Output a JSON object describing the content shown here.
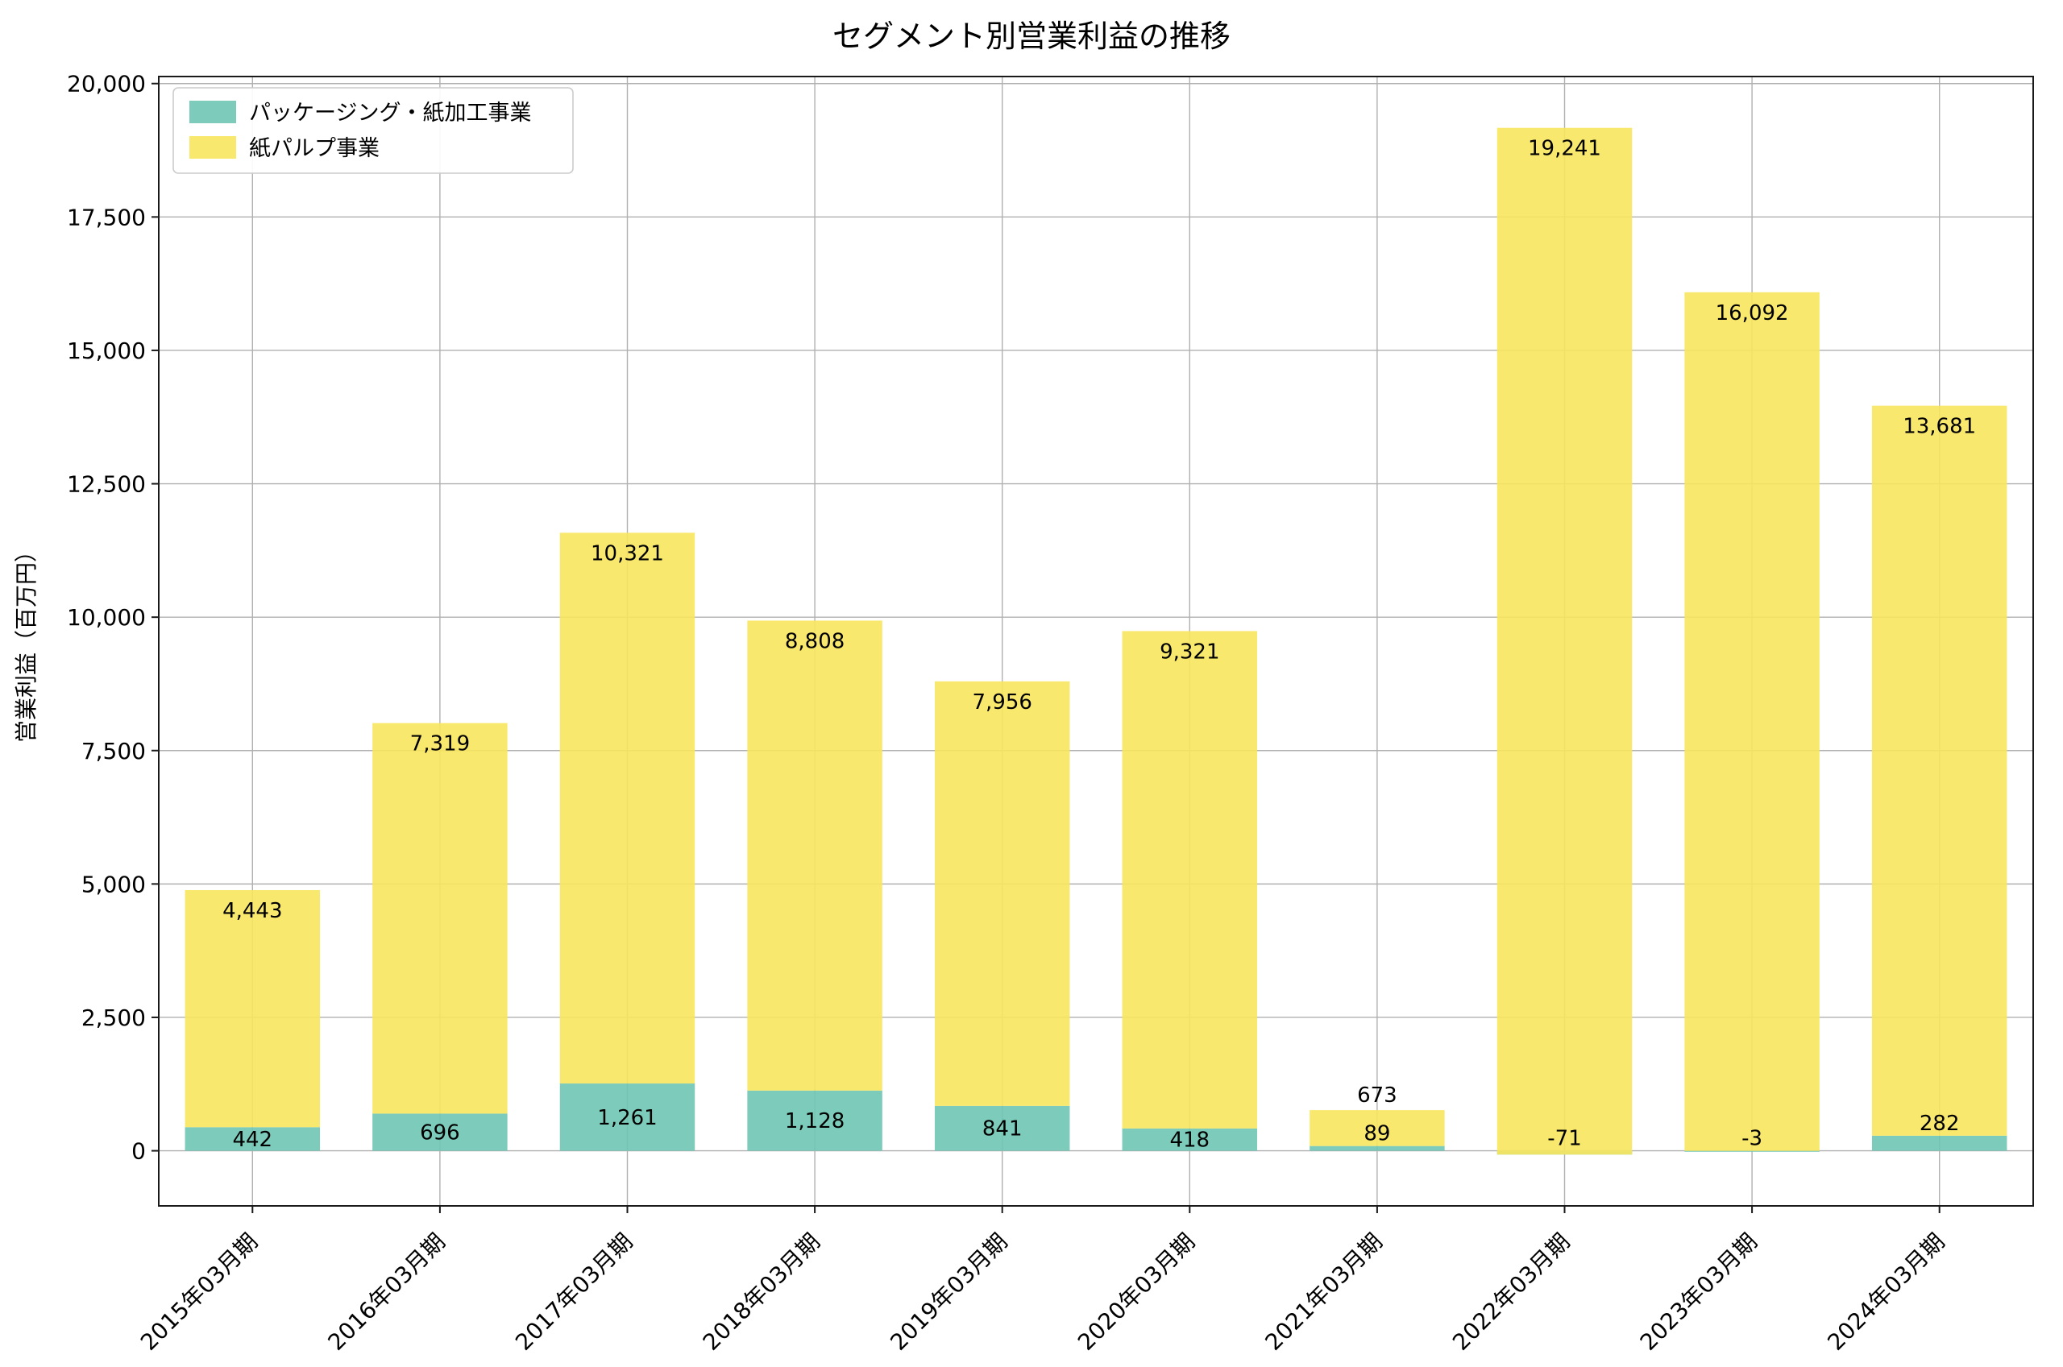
{
  "title": "セグメント別営業利益の推移",
  "chart_data": {
    "type": "bar",
    "stacked": true,
    "title": "セグメント別営業利益の推移",
    "xlabel": "",
    "ylabel": "営業利益（百万円）",
    "categories": [
      "2015年03月期",
      "2016年03月期",
      "2017年03月期",
      "2018年03月期",
      "2019年03月期",
      "2020年03月期",
      "2021年03月期",
      "2022年03月期",
      "2023年03月期",
      "2024年03月期"
    ],
    "series": [
      {
        "name": "パッケージング・紙加工事業",
        "color": "#6fc7b4",
        "values": [
          442,
          696,
          1261,
          1128,
          841,
          418,
          89,
          -71,
          -3,
          282
        ]
      },
      {
        "name": "紙パルプ事業",
        "color": "#f8e55e",
        "values": [
          4443,
          7319,
          10321,
          8808,
          7956,
          9321,
          673,
          19241,
          16092,
          13681
        ]
      }
    ],
    "yticks": [
      0,
      2500,
      5000,
      7500,
      10000,
      12500,
      15000,
      17500,
      20000
    ],
    "ylim": [
      -1033,
      20132
    ],
    "grid": true,
    "legend_position": "upper left",
    "colors": {
      "grid": "#b0b0b0",
      "spine": "#1a1a1a",
      "text": "#000000",
      "legend_border": "#cccccc"
    }
  }
}
